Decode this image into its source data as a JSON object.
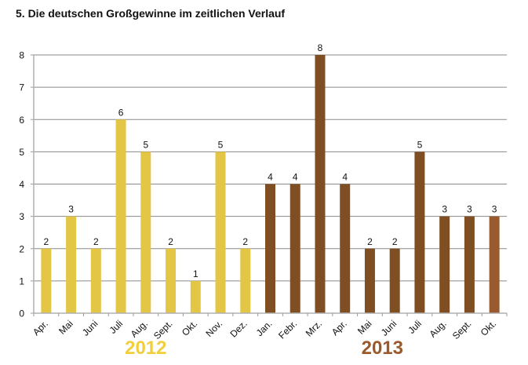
{
  "chart_data": {
    "type": "bar",
    "title": "5. Die deutschen Großgewinne im zeitlichen Verlauf",
    "xlabel": "",
    "ylabel": "",
    "ylim": [
      0,
      8
    ],
    "yticks": [
      "0",
      "1",
      "2",
      "3",
      "4",
      "5",
      "6",
      "7",
      "8"
    ],
    "grid": true,
    "categories": [
      "Apr.",
      "Mai",
      "Juni",
      "Juli",
      "Aug.",
      "Sept.",
      "Okt.",
      "Nov.",
      "Dez.",
      "Jan.",
      "Febr.",
      "Mrz.",
      "Apr.",
      "Mai",
      "Juni",
      "Juli",
      "Aug.",
      "Sept.",
      "Okt."
    ],
    "values": [
      2,
      3,
      2,
      6,
      5,
      2,
      1,
      5,
      2,
      4,
      4,
      8,
      4,
      2,
      2,
      5,
      3,
      3,
      3
    ],
    "years": [
      {
        "label": "2012",
        "color": "#F0CF3C",
        "first": 0,
        "last": 8
      },
      {
        "label": "2013",
        "color": "#9A5A2C",
        "first": 9,
        "last": 18
      }
    ],
    "bar_colors": [
      "#E3C646",
      "#E3C646",
      "#E3C646",
      "#E3C646",
      "#E3C646",
      "#E3C646",
      "#E3C646",
      "#E3C646",
      "#E3C646",
      "#7F4E22",
      "#7F4E22",
      "#7F4E22",
      "#7F4E22",
      "#7F4E22",
      "#7F4E22",
      "#7F4E22",
      "#7F4E22",
      "#7F4E22",
      "#995A30"
    ]
  }
}
